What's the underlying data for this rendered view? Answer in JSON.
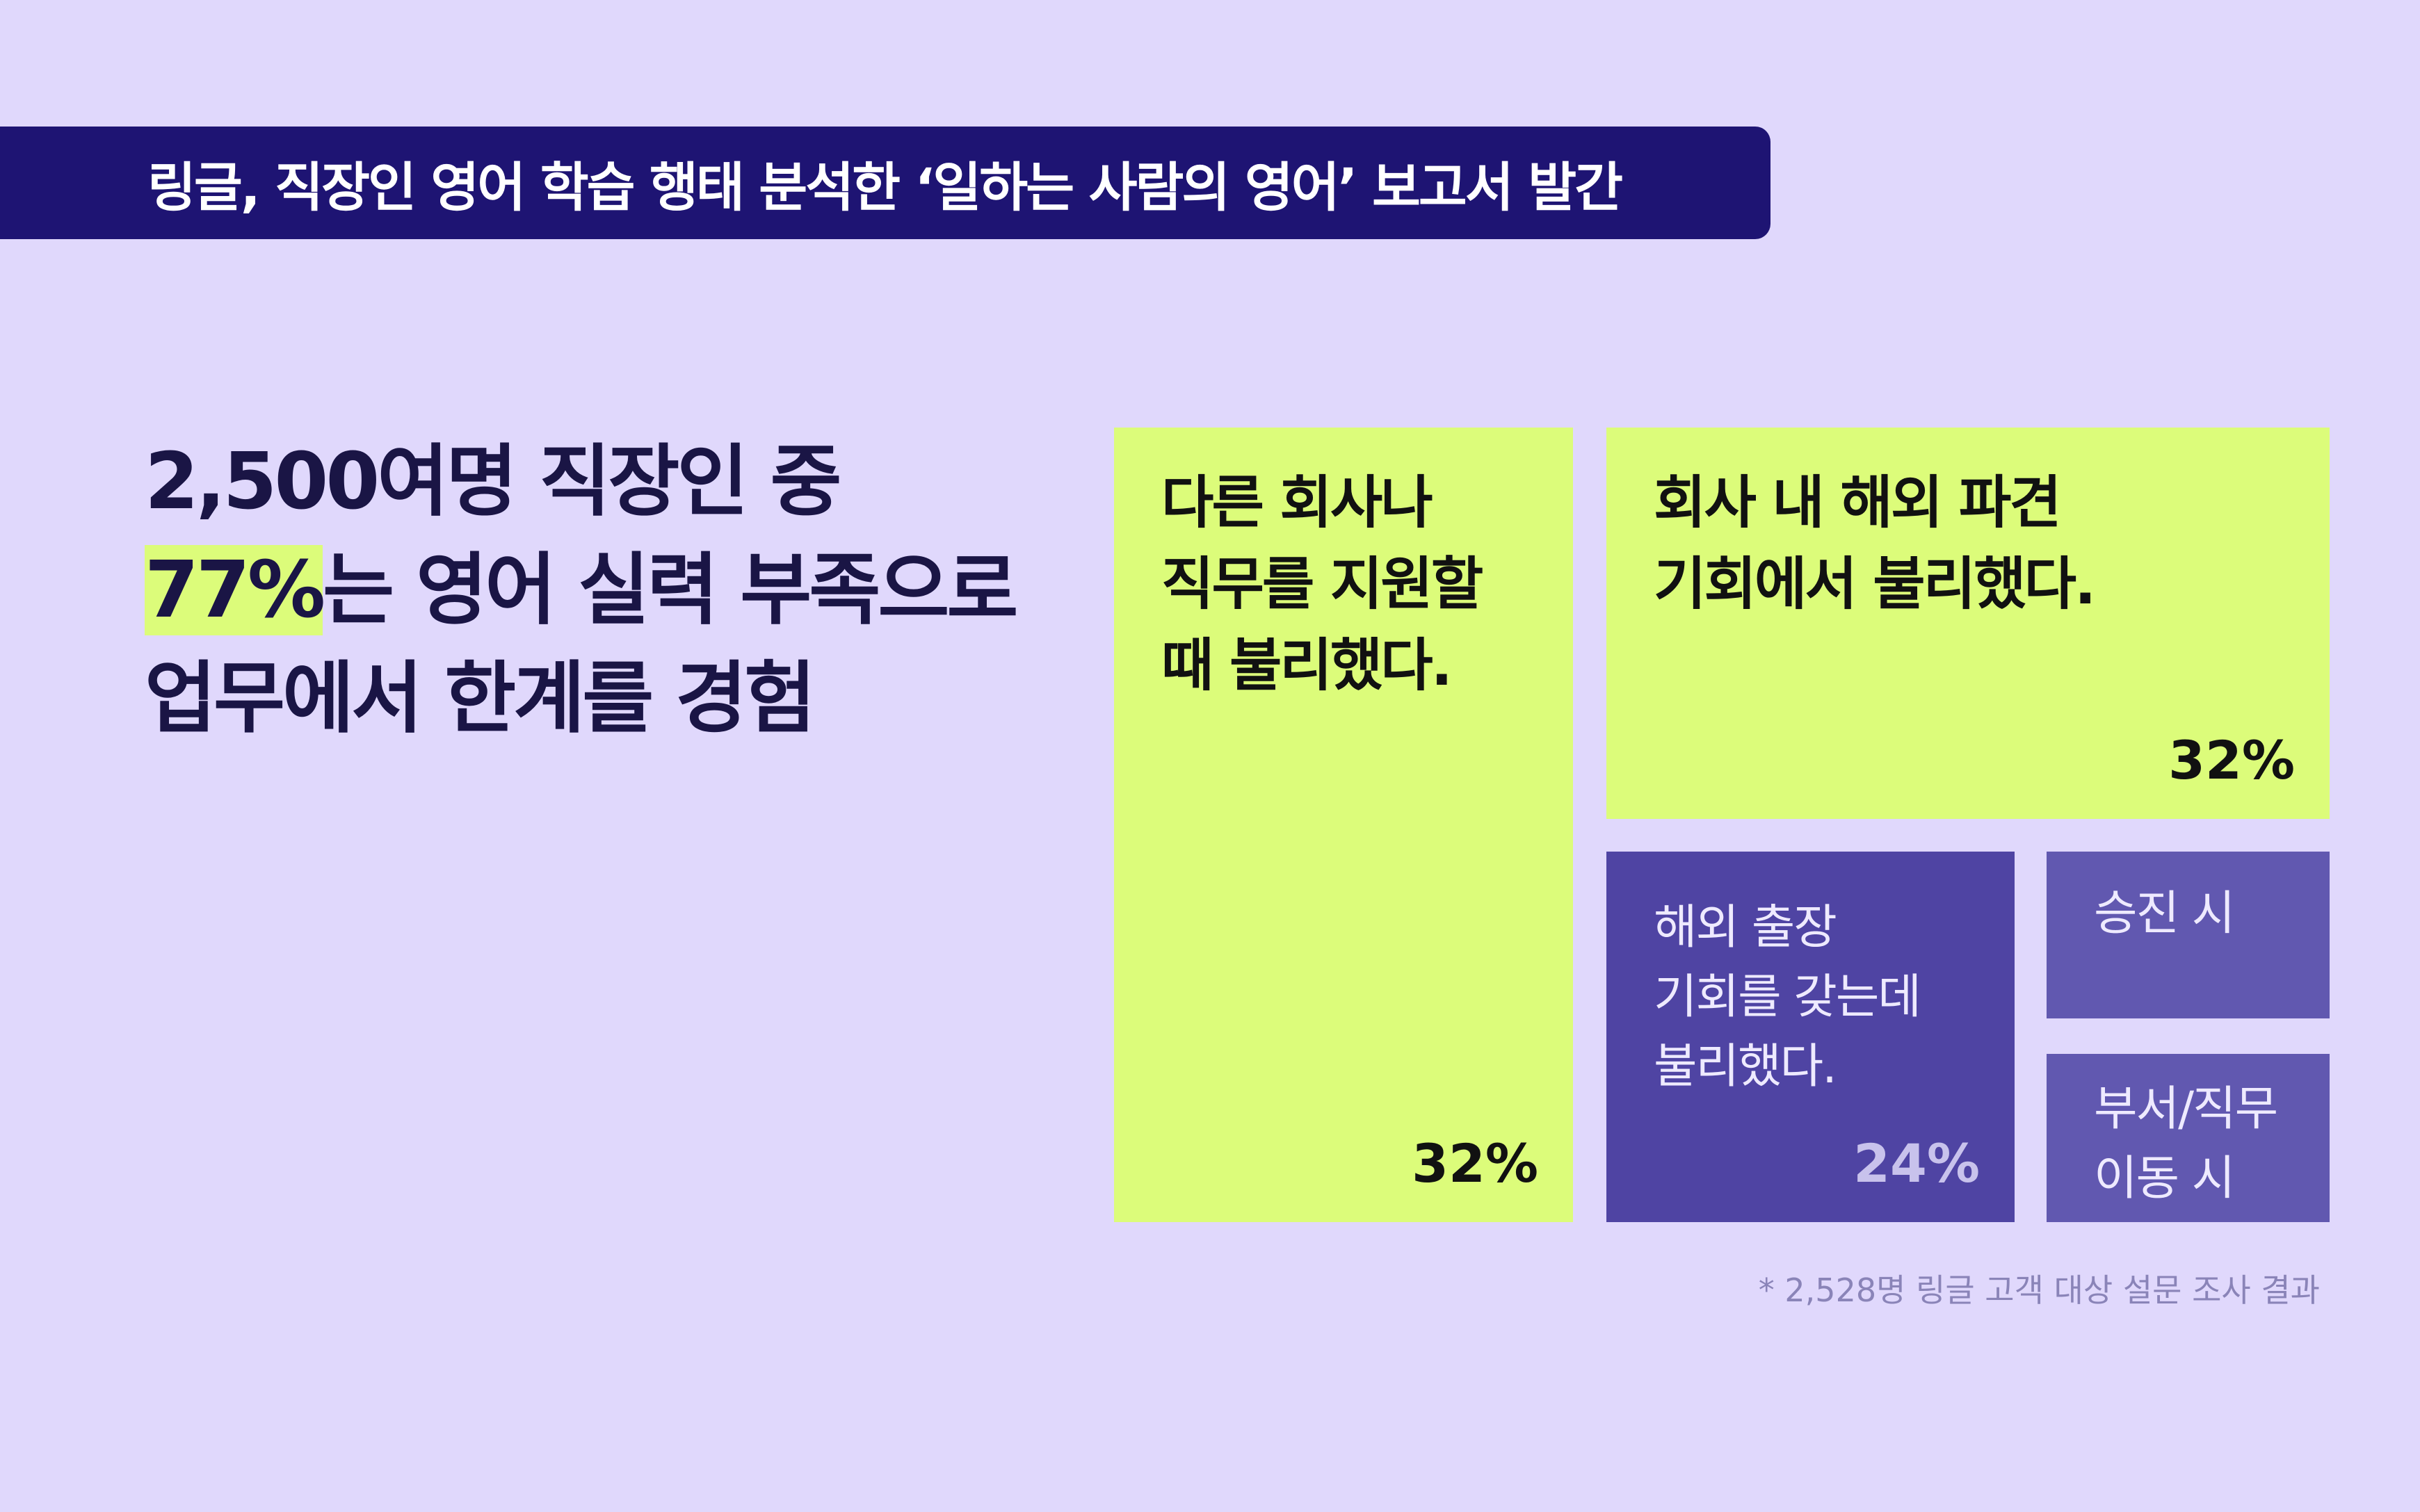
{
  "banner": {
    "title": "링글, 직장인 영어 학습 행태 분석한 ‘일하는 사람의 영어’ 보고서 발간"
  },
  "headline": {
    "line1": "2,500여명 직장인 중",
    "highlight": "77%",
    "line2_rest": "는 영어 실력 부족으로",
    "line3": "업무에서 한계를 경험"
  },
  "colors": {
    "background": "#e0d8fc",
    "banner": "#1e1473",
    "lime": "#dcfc7a",
    "purple_dark": "#4f44a3",
    "purple_light": "#6158b0"
  },
  "chart_data": {
    "type": "treemap",
    "items": [
      {
        "label": "다른 회사나 직무를 지원할 때 불리했다.",
        "lines": [
          "다른 회사나",
          "직무를 지원할",
          "때 불리했다."
        ],
        "value_label": "32%",
        "value": 32
      },
      {
        "label": "회사 내 해외 파견 기회에서 불리했다.",
        "lines": [
          "회사 내 해외 파견",
          "기회에서 불리했다."
        ],
        "value_label": "32%",
        "value": 32
      },
      {
        "label": "해외 출장 기회를 갖는데 불리했다.",
        "lines": [
          "해외 출장",
          "기회를 갖는데",
          "불리했다."
        ],
        "value_label": "24%",
        "value": 24
      },
      {
        "label": "승진 시",
        "lines": [
          "승진 시"
        ]
      },
      {
        "label": "부서/직무 이동 시",
        "lines": [
          "부서/직무",
          "이동 시"
        ]
      }
    ],
    "footnote": "* 2,528명 링글 고객 대상 설문 조사 결과"
  }
}
